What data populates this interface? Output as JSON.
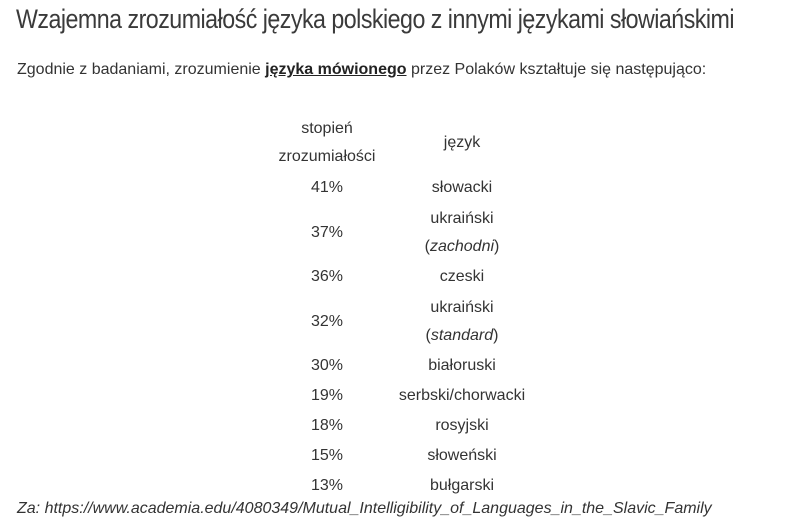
{
  "title": "Wzajemna zrozumiałość języka polskiego z innymi językami słowiańskimi",
  "intro": {
    "before": "Zgodnie z badaniami, zrozumienie ",
    "link": "języka mówionego",
    "after": " przez Polaków kształtuje się następująco:"
  },
  "table": {
    "headers": {
      "pct_line1": "stopień",
      "pct_line2": "zrozumiałości",
      "lang": "język"
    },
    "rows": [
      {
        "pct": "41%",
        "lang": "słowacki",
        "note": ""
      },
      {
        "pct": "37%",
        "lang": "ukraiński",
        "note": "zachodni"
      },
      {
        "pct": "36%",
        "lang": "czeski",
        "note": ""
      },
      {
        "pct": "32%",
        "lang": "ukraiński",
        "note": "standard"
      },
      {
        "pct": "30%",
        "lang": "białoruski",
        "note": ""
      },
      {
        "pct": "19%",
        "lang": "serbski/chorwacki",
        "note": ""
      },
      {
        "pct": "18%",
        "lang": "rosyjski",
        "note": ""
      },
      {
        "pct": "15%",
        "lang": "słoweński",
        "note": ""
      },
      {
        "pct": "13%",
        "lang": "bułgarski",
        "note": ""
      }
    ]
  },
  "source": "Za: https://www.academia.edu/4080349/Mutual_Intelligibility_of_Languages_in_the_Slavic_Family",
  "colors": {
    "text": "#333333",
    "title": "#3a3a3a",
    "link": "#222222",
    "background": "#ffffff"
  }
}
